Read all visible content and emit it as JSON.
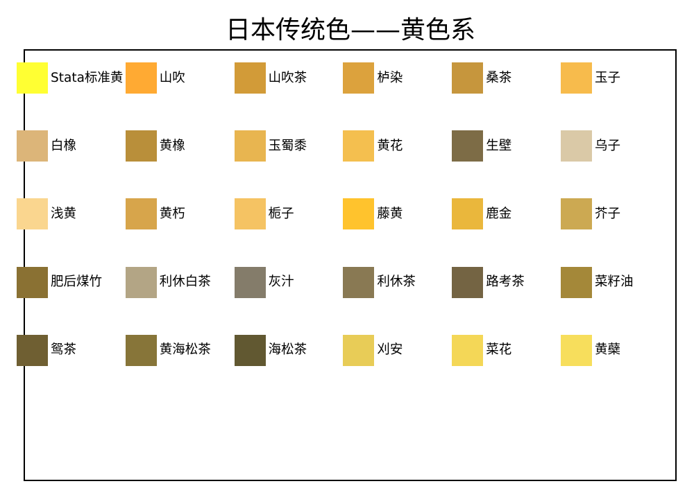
{
  "title": "日本传统色——黄色系",
  "swatches": [
    {
      "label": "Stata标准黄",
      "color": "#FFFF33"
    },
    {
      "label": "山吹",
      "color": "#FFAA33"
    },
    {
      "label": "山吹茶",
      "color": "#D29B38"
    },
    {
      "label": "栌染",
      "color": "#DCA23D"
    },
    {
      "label": "桑茶",
      "color": "#C6963D"
    },
    {
      "label": "玉子",
      "color": "#F7BB4C"
    },
    {
      "label": "白橡",
      "color": "#DCB579"
    },
    {
      "label": "黄橡",
      "color": "#B98F3A"
    },
    {
      "label": "玉蜀黍",
      "color": "#E8B550"
    },
    {
      "label": "黄花",
      "color": "#F4BF4F"
    },
    {
      "label": "生壁",
      "color": "#7D6C46"
    },
    {
      "label": "乌子",
      "color": "#DAC9A7"
    },
    {
      "label": "浅黄",
      "color": "#FAD68F"
    },
    {
      "label": "黄朽",
      "color": "#D7A54B"
    },
    {
      "label": "栀子",
      "color": "#F5C363"
    },
    {
      "label": "藤黄",
      "color": "#FFC32D"
    },
    {
      "label": "鹿金",
      "color": "#EAB73C"
    },
    {
      "label": "芥子",
      "color": "#CCA952"
    },
    {
      "label": "肥后煤竹",
      "color": "#8A7133"
    },
    {
      "label": "利休白茶",
      "color": "#B3A585"
    },
    {
      "label": "灰汁",
      "color": "#847C6A"
    },
    {
      "label": "利休茶",
      "color": "#897953"
    },
    {
      "label": "路考茶",
      "color": "#746443"
    },
    {
      "label": "菜籽油",
      "color": "#A48839"
    },
    {
      "label": "鸳茶",
      "color": "#6F5F32"
    },
    {
      "label": "黄海松茶",
      "color": "#877539"
    },
    {
      "label": "海松茶",
      "color": "#615831"
    },
    {
      "label": "刈安",
      "color": "#E8CC57"
    },
    {
      "label": "菜花",
      "color": "#F4D757"
    },
    {
      "label": "黄蘗",
      "color": "#F7DE5C"
    }
  ]
}
